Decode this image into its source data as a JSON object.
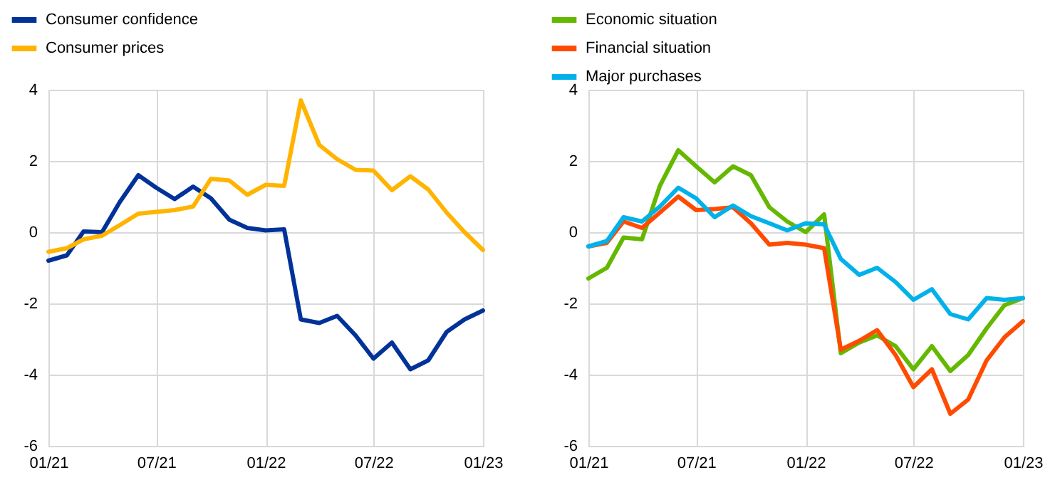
{
  "chart_data": [
    {
      "type": "line",
      "x": [
        "2021-01",
        "2021-02",
        "2021-03",
        "2021-04",
        "2021-05",
        "2021-06",
        "2021-07",
        "2021-08",
        "2021-09",
        "2021-10",
        "2021-11",
        "2021-12",
        "2022-01",
        "2022-02",
        "2022-03",
        "2022-04",
        "2022-05",
        "2022-06",
        "2022-07",
        "2022-08",
        "2022-09",
        "2022-10",
        "2022-11",
        "2022-12",
        "2023-01"
      ],
      "series": [
        {
          "name": "Consumer confidence",
          "color": "#003299",
          "values": [
            -0.8,
            -0.65,
            0.02,
            0.0,
            0.85,
            1.6,
            1.25,
            0.93,
            1.28,
            0.95,
            0.35,
            0.12,
            0.05,
            0.08,
            -2.45,
            -2.55,
            -2.35,
            -2.9,
            -3.55,
            -3.1,
            -3.85,
            -3.6,
            -2.8,
            -2.45,
            -2.2
          ]
        },
        {
          "name": "Consumer prices",
          "color": "#ffb400",
          "values": [
            -0.55,
            -0.45,
            -0.2,
            -0.1,
            0.2,
            0.52,
            0.57,
            0.62,
            0.72,
            1.5,
            1.45,
            1.05,
            1.33,
            1.3,
            3.7,
            2.45,
            2.05,
            1.75,
            1.73,
            1.18,
            1.57,
            1.2,
            0.55,
            0.0,
            -0.5
          ]
        }
      ],
      "xlim": [
        "2021-01",
        "2023-01"
      ],
      "xticks": [
        {
          "value": "2021-01",
          "label": "01/21"
        },
        {
          "value": "2021-07",
          "label": "07/21"
        },
        {
          "value": "2022-01",
          "label": "01/22"
        },
        {
          "value": "2022-07",
          "label": "07/22"
        },
        {
          "value": "2023-01",
          "label": "01/23"
        }
      ],
      "ylim": [
        -6,
        4
      ],
      "yticks": [
        -6,
        -4,
        -2,
        0,
        2,
        4
      ],
      "grid": true,
      "legend": "top left",
      "marker": "none",
      "line_style": "solid"
    },
    {
      "type": "line",
      "x": [
        "2021-01",
        "2021-02",
        "2021-03",
        "2021-04",
        "2021-05",
        "2021-06",
        "2021-07",
        "2021-08",
        "2021-09",
        "2021-10",
        "2021-11",
        "2021-12",
        "2022-01",
        "2022-02",
        "2022-03",
        "2022-04",
        "2022-05",
        "2022-06",
        "2022-07",
        "2022-08",
        "2022-09",
        "2022-10",
        "2022-11",
        "2022-12",
        "2023-01"
      ],
      "series": [
        {
          "name": "Economic situation",
          "color": "#65b800",
          "values": [
            -1.3,
            -1.0,
            -0.15,
            -0.2,
            1.3,
            2.3,
            1.85,
            1.4,
            1.85,
            1.6,
            0.7,
            0.3,
            0.0,
            0.5,
            -3.4,
            -3.1,
            -2.9,
            -3.2,
            -3.85,
            -3.2,
            -3.9,
            -3.45,
            -2.7,
            -2.05,
            -1.85
          ]
        },
        {
          "name": "Financial situation",
          "color": "#ff4b00",
          "values": [
            -0.4,
            -0.3,
            0.3,
            0.12,
            0.55,
            1.0,
            0.62,
            0.65,
            0.7,
            0.25,
            -0.35,
            -0.3,
            -0.35,
            -0.45,
            -3.3,
            -3.05,
            -2.75,
            -3.45,
            -4.35,
            -3.85,
            -5.1,
            -4.7,
            -3.6,
            -2.95,
            -2.5
          ]
        },
        {
          "name": "Major purchases",
          "color": "#00b1ea",
          "values": [
            -0.4,
            -0.25,
            0.42,
            0.3,
            0.72,
            1.25,
            0.95,
            0.42,
            0.75,
            0.45,
            0.25,
            0.05,
            0.25,
            0.22,
            -0.75,
            -1.2,
            -1.0,
            -1.4,
            -1.9,
            -1.6,
            -2.3,
            -2.45,
            -1.85,
            -1.9,
            -1.85
          ]
        }
      ],
      "xlim": [
        "2021-01",
        "2023-01"
      ],
      "xticks": [
        {
          "value": "2021-01",
          "label": "01/21"
        },
        {
          "value": "2021-07",
          "label": "07/21"
        },
        {
          "value": "2022-01",
          "label": "01/22"
        },
        {
          "value": "2022-07",
          "label": "07/22"
        },
        {
          "value": "2023-01",
          "label": "01/23"
        }
      ],
      "ylim": [
        -6,
        4
      ],
      "yticks": [
        -6,
        -4,
        -2,
        0,
        2,
        4
      ],
      "grid": true,
      "legend": "top left",
      "marker": "none",
      "line_style": "solid"
    }
  ]
}
